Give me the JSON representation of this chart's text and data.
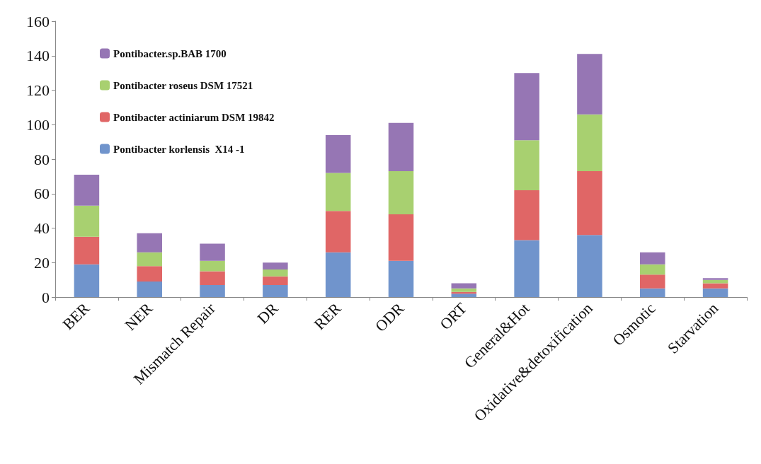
{
  "chart_data": {
    "type": "bar",
    "stacked": true,
    "categories": [
      "BER",
      "NER",
      "Mismatch Repair",
      "DR",
      "RER",
      "ODR",
      "ORT",
      "General&Hot",
      "Oxidative&detoxification",
      "Osmotic",
      "Starvation"
    ],
    "series": [
      {
        "name": "Pontibacter korlensis  X14 -1",
        "color": "#7094cc",
        "values": [
          19,
          9,
          7,
          7,
          26,
          21,
          2,
          33,
          36,
          5,
          5
        ]
      },
      {
        "name": "Pontibacter actiniarum DSM 19842",
        "color": "#e06666",
        "values": [
          16,
          9,
          8,
          5,
          24,
          27,
          1,
          29,
          37,
          8,
          3
        ]
      },
      {
        "name": "Pontibacter roseus DSM 17521",
        "color": "#a8d070",
        "values": [
          18,
          8,
          6,
          4,
          22,
          25,
          2,
          29,
          33,
          6,
          2
        ]
      },
      {
        "name": "Pontibacter.sp.BAB 1700",
        "color": "#9676b4",
        "values": [
          18,
          11,
          10,
          4,
          22,
          28,
          3,
          39,
          35,
          7,
          1
        ]
      }
    ],
    "ylim": [
      0,
      160
    ],
    "yticks": [
      0,
      20,
      40,
      60,
      80,
      100,
      120,
      140,
      160
    ],
    "grid": false,
    "legend": "top left"
  }
}
